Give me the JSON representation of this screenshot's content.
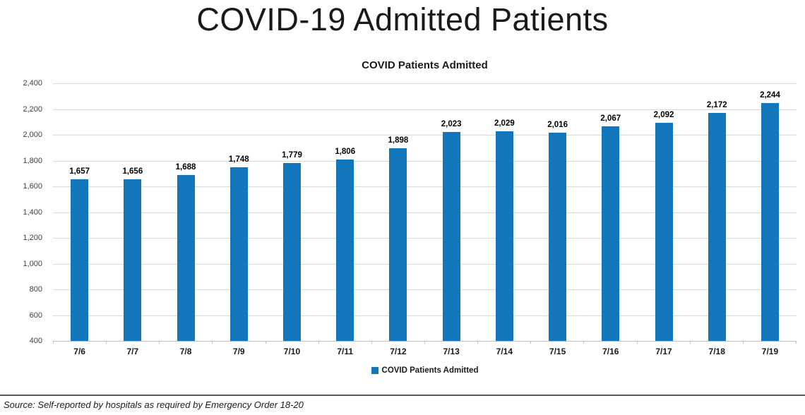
{
  "page_title": "COVID-19 Admitted Patients",
  "chart": {
    "title": "COVID Patients Admitted",
    "legend_label": "COVID Patients Admitted",
    "bar_color": "#1276BD",
    "gridline_color": "#d9d9d9"
  },
  "chart_data": {
    "type": "bar",
    "title": "COVID Patients Admitted",
    "categories": [
      "7/6",
      "7/7",
      "7/8",
      "7/9",
      "7/10",
      "7/11",
      "7/12",
      "7/13",
      "7/14",
      "7/15",
      "7/16",
      "7/17",
      "7/18",
      "7/19"
    ],
    "values": [
      1657,
      1656,
      1688,
      1748,
      1779,
      1806,
      1898,
      2023,
      2029,
      2016,
      2067,
      2092,
      2172,
      2244
    ],
    "value_labels": [
      "1,657",
      "1,656",
      "1,688",
      "1,748",
      "1,779",
      "1,806",
      "1,898",
      "2,023",
      "2,029",
      "2,016",
      "2,067",
      "2,092",
      "2,172",
      "2,244"
    ],
    "xlabel": "",
    "ylabel": "",
    "ylim": [
      400,
      2400
    ],
    "ytick_step": 200,
    "ytick_labels": [
      "400",
      "600",
      "800",
      "1,000",
      "1,200",
      "1,400",
      "1,600",
      "1,800",
      "2,000",
      "2,200",
      "2,400"
    ],
    "grid": true,
    "legend": [
      "COVID Patients Admitted"
    ],
    "legend_position": "bottom"
  },
  "source_note": "Source: Self-reported by hospitals as required by Emergency Order 18-20"
}
